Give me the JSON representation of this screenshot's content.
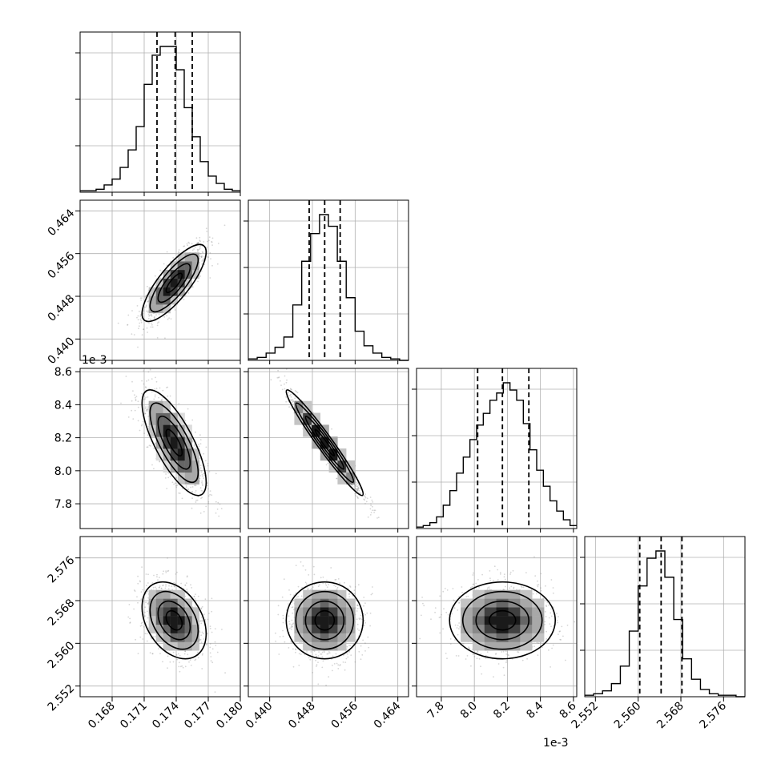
{
  "chart_data": {
    "type": "corner",
    "n_params": 4,
    "grid": true,
    "quantile_lines": "dashed",
    "offset_labels": [
      {
        "param": 2,
        "text": "1e-3"
      }
    ],
    "params": [
      {
        "index": 0,
        "range": [
          0.165,
          0.18
        ],
        "ticks": [
          0.168,
          0.171,
          0.174,
          0.177,
          0.18
        ],
        "tick_labels": [
          "0.168",
          "0.171",
          "0.174",
          "0.177",
          "0.180"
        ],
        "quantiles": [
          0.1722,
          0.1739,
          0.1755
        ],
        "hist": [
          1,
          1,
          2,
          5,
          9,
          17,
          29,
          45,
          74,
          94,
          100,
          100,
          84,
          58,
          38,
          21,
          11,
          6,
          2,
          1
        ]
      },
      {
        "index": 1,
        "range": [
          0.436,
          0.466
        ],
        "ticks": [
          0.44,
          0.448,
          0.456,
          0.464
        ],
        "tick_labels": [
          "0.440",
          "0.448",
          "0.456",
          "0.464"
        ],
        "quantiles": [
          0.4474,
          0.4503,
          0.4532
        ],
        "hist": [
          1,
          2,
          5,
          9,
          16,
          38,
          68,
          87,
          100,
          92,
          68,
          43,
          20,
          10,
          5,
          2,
          1,
          0
        ]
      },
      {
        "index": 2,
        "range": [
          7.65,
          8.62
        ],
        "ticks": [
          7.8,
          8.0,
          8.2,
          8.4,
          8.6
        ],
        "tick_labels": [
          "7.8",
          "8.0",
          "8.2",
          "8.4",
          "8.6"
        ],
        "quantiles": [
          8.02,
          8.17,
          8.33
        ],
        "hist": [
          1,
          2,
          4,
          8,
          16,
          26,
          38,
          49,
          61,
          71,
          79,
          88,
          93,
          100,
          95,
          88,
          72,
          54,
          40,
          29,
          19,
          12,
          6,
          2
        ]
      },
      {
        "index": 3,
        "range": [
          2.55,
          2.58
        ],
        "ticks": [
          2.552,
          2.56,
          2.568,
          2.576
        ],
        "tick_labels": [
          "2.552",
          "2.560",
          "2.568",
          "2.576"
        ],
        "quantiles": [
          2.5603,
          2.5643,
          2.5682
        ],
        "hist": [
          1,
          2,
          4,
          9,
          21,
          45,
          76,
          95,
          100,
          82,
          53,
          26,
          12,
          5,
          2,
          1,
          1,
          0
        ]
      }
    ],
    "pairs": [
      {
        "x": 0,
        "y": 1,
        "center": [
          0.1738,
          0.4505
        ],
        "sd": [
          0.0015,
          0.0036
        ],
        "corr": 0.8
      },
      {
        "x": 0,
        "y": 2,
        "center": [
          0.1738,
          8.17
        ],
        "sd": [
          0.0015,
          0.16
        ],
        "corr": -0.75
      },
      {
        "x": 1,
        "y": 2,
        "center": [
          0.4503,
          8.17
        ],
        "sd": [
          0.0036,
          0.16
        ],
        "corr": -0.97
      },
      {
        "x": 0,
        "y": 3,
        "center": [
          0.1738,
          2.5643
        ],
        "sd": [
          0.0015,
          0.0036
        ],
        "corr": -0.35
      },
      {
        "x": 1,
        "y": 3,
        "center": [
          0.4503,
          2.5643
        ],
        "sd": [
          0.0036,
          0.0036
        ],
        "corr": 0.0
      },
      {
        "x": 2,
        "y": 3,
        "center": [
          8.17,
          2.5643
        ],
        "sd": [
          0.16,
          0.0036
        ],
        "corr": 0.0
      }
    ]
  }
}
